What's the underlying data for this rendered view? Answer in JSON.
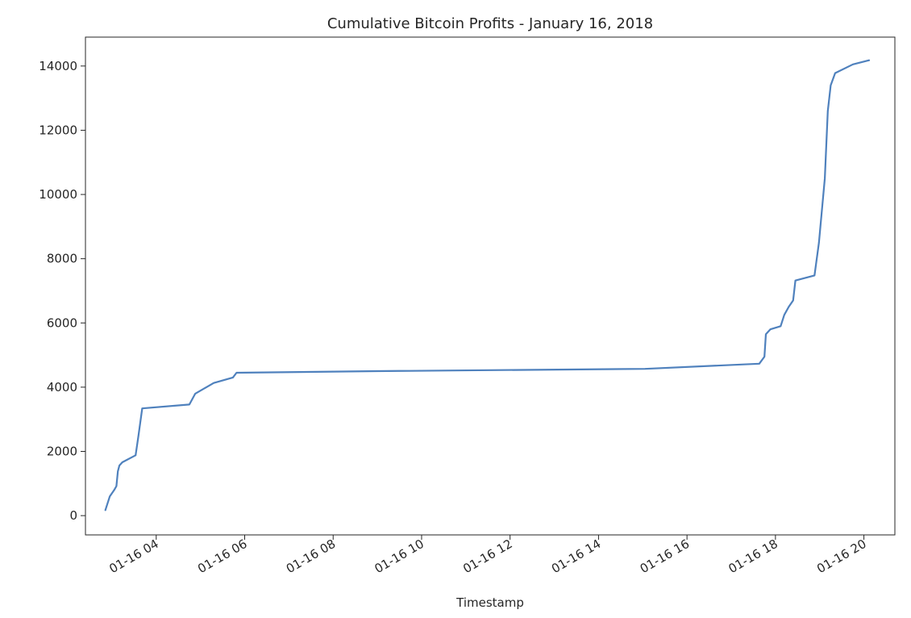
{
  "chart_data": {
    "type": "line",
    "title": "Cumulative Bitcoin Profits - January 16, 2018",
    "xlabel": "Timestamp",
    "ylabel": "",
    "x_scale": "time",
    "xlim": [
      "2018-01-16 02:24",
      "2018-01-16 20:42"
    ],
    "ylim": [
      -600,
      14900
    ],
    "grid": false,
    "legend": "none",
    "x_ticks": [
      "01-16 04",
      "01-16 06",
      "01-16 08",
      "01-16 10",
      "01-16 12",
      "01-16 14",
      "01-16 16",
      "01-16 18",
      "01-16 20"
    ],
    "y_ticks": [
      0,
      2000,
      4000,
      6000,
      8000,
      10000,
      12000,
      14000
    ],
    "series": [
      {
        "color": "#4f81bd",
        "points": [
          [
            "2018-01-16 02:51",
            170
          ],
          [
            "2018-01-16 02:57",
            600
          ],
          [
            "2018-01-16 03:03",
            800
          ],
          [
            "2018-01-16 03:06",
            920
          ],
          [
            "2018-01-16 03:08",
            1380
          ],
          [
            "2018-01-16 03:10",
            1560
          ],
          [
            "2018-01-16 03:14",
            1660
          ],
          [
            "2018-01-16 03:32",
            1880
          ],
          [
            "2018-01-16 03:36",
            2500
          ],
          [
            "2018-01-16 03:41",
            3340
          ],
          [
            "2018-01-16 04:45",
            3460
          ],
          [
            "2018-01-16 04:53",
            3800
          ],
          [
            "2018-01-16 05:18",
            4130
          ],
          [
            "2018-01-16 05:44",
            4300
          ],
          [
            "2018-01-16 05:49",
            4450
          ],
          [
            "2018-01-16 09:00",
            4500
          ],
          [
            "2018-01-16 15:03",
            4570
          ],
          [
            "2018-01-16 17:38",
            4730
          ],
          [
            "2018-01-16 17:45",
            4950
          ],
          [
            "2018-01-16 17:47",
            5650
          ],
          [
            "2018-01-16 17:53",
            5800
          ],
          [
            "2018-01-16 18:07",
            5900
          ],
          [
            "2018-01-16 18:12",
            6250
          ],
          [
            "2018-01-16 18:18",
            6500
          ],
          [
            "2018-01-16 18:24",
            6700
          ],
          [
            "2018-01-16 18:27",
            7320
          ],
          [
            "2018-01-16 18:53",
            7480
          ],
          [
            "2018-01-16 18:59",
            8500
          ],
          [
            "2018-01-16 19:07",
            10500
          ],
          [
            "2018-01-16 19:11",
            12600
          ],
          [
            "2018-01-16 19:15",
            13400
          ],
          [
            "2018-01-16 19:21",
            13780
          ],
          [
            "2018-01-16 19:45",
            14050
          ],
          [
            "2018-01-16 20:07",
            14180
          ]
        ]
      }
    ]
  }
}
